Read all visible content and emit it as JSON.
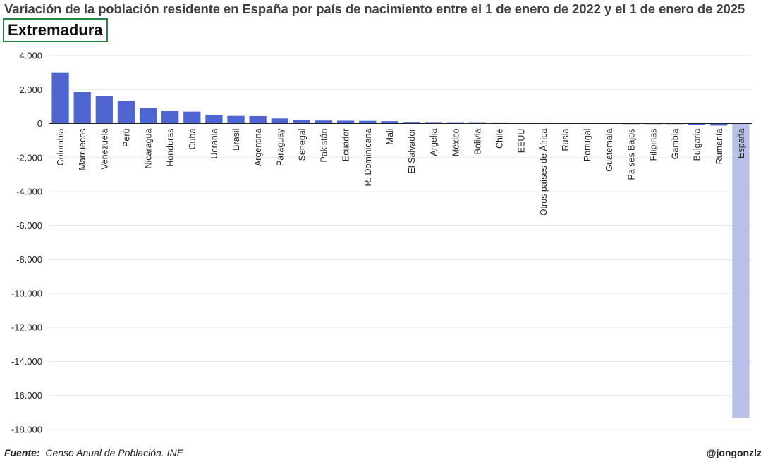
{
  "header": {
    "title": "Variación de la población residente en España por país de nacimiento entre el 1 de enero de 2022 y el 1 de enero de 2025",
    "region": "Extremadura"
  },
  "footer": {
    "source_label": "Fuente:",
    "source_text": "Censo Anual de Población. INE",
    "handle": "@jongonzlz"
  },
  "colors": {
    "bar": "#4f65d0",
    "bar_highlight": "#b8c0ea",
    "grid": "#e6e6e6",
    "badge_border": "#1f8a44"
  },
  "chart_data": {
    "type": "bar",
    "categories": [
      "Colombia",
      "Marruecos",
      "Venezuela",
      "Perú",
      "Nicaragua",
      "Honduras",
      "Cuba",
      "Ucrania",
      "Brasil",
      "Argentina",
      "Paraguay",
      "Senegal",
      "Pakistán",
      "Ecuador",
      "R. Dominicana",
      "Mali",
      "El Salvador",
      "Argelia",
      "México",
      "Bolivia",
      "Chile",
      "EEUU",
      "Otros países de África",
      "Rusia",
      "Portugal",
      "Guatemala",
      "Países Bajos",
      "Filipinas",
      "Gambia",
      "Bulgaria",
      "Rumanía",
      "España"
    ],
    "values": [
      3020,
      1850,
      1610,
      1320,
      910,
      750,
      700,
      510,
      450,
      440,
      300,
      210,
      180,
      170,
      160,
      140,
      100,
      90,
      80,
      80,
      70,
      50,
      40,
      30,
      20,
      20,
      10,
      10,
      10,
      -80,
      -120,
      -17300
    ],
    "highlight": [
      "España"
    ],
    "ylim": [
      -18000,
      4000
    ],
    "yticks": [
      4000,
      2000,
      0,
      -2000,
      -4000,
      -6000,
      -8000,
      -10000,
      -12000,
      -14000,
      -16000,
      -18000
    ],
    "ytick_labels": [
      "4.000",
      "2.000",
      "0",
      "-2.000",
      "-4.000",
      "-6.000",
      "-8.000",
      "-10.000",
      "-12.000",
      "-14.000",
      "-16.000",
      "-18.000"
    ],
    "grid": true,
    "legend": "none",
    "xlabel": "",
    "ylabel": ""
  }
}
